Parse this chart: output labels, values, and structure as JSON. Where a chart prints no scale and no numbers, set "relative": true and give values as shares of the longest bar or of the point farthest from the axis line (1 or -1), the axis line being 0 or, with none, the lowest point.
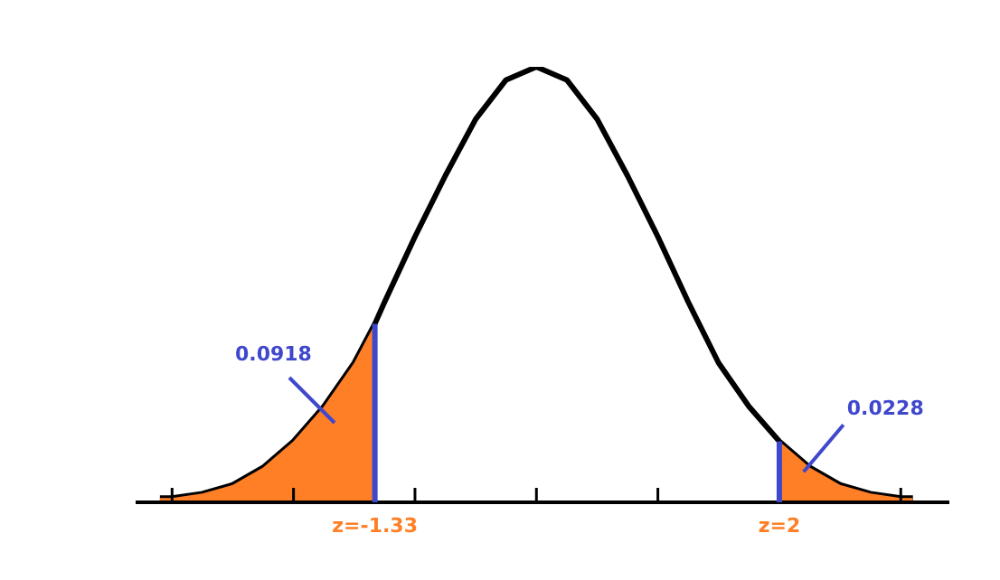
{
  "chart_data": {
    "type": "line",
    "relative": true,
    "legend": false,
    "tick_labels": "x",
    "marker": "none",
    "line_style": "solid",
    "xlim": [
      -3.3,
      3.4
    ],
    "xticks": [
      {
        "value": -3,
        "label": null
      },
      {
        "value": -2,
        "label": null
      },
      {
        "value": -1.33,
        "label": "z=-1.33"
      },
      {
        "value": -1,
        "label": null
      },
      {
        "value": 0,
        "label": null
      },
      {
        "value": 1,
        "label": null
      },
      {
        "value": 2,
        "label": "z=2"
      },
      {
        "value": 3,
        "label": null
      }
    ],
    "series": [
      {
        "type": "area",
        "color": "#ff7f27",
        "x": [
          -3.1,
          -3,
          -2.75,
          -2.5,
          -2.25,
          -2,
          -1.75,
          -1.5,
          -1.33
        ],
        "values": [
          0.01,
          0.01,
          0.02,
          0.04,
          0.08,
          0.14,
          0.22,
          0.32,
          0.41
        ]
      },
      {
        "type": "area",
        "color": "#ff7f27",
        "x": [
          2,
          2.25,
          2.5,
          2.75,
          3,
          3.1
        ],
        "values": [
          0.14,
          0.08,
          0.04,
          0.02,
          0.01,
          0.01
        ]
      },
      {
        "color": "#000000",
        "x": [
          -3.1,
          -3,
          -2.75,
          -2.5,
          -2.25,
          -2,
          -1.75,
          -1.5,
          -1.33,
          -1.25,
          -1,
          -0.75,
          -0.5,
          -0.25,
          0,
          0.25,
          0.5,
          0.75,
          1,
          1.25,
          1.5,
          1.75,
          2,
          2.25,
          2.5,
          2.75,
          3,
          3.1
        ],
        "values": [
          0.01,
          0.01,
          0.02,
          0.04,
          0.08,
          0.14,
          0.22,
          0.32,
          0.41,
          0.46,
          0.61,
          0.75,
          0.88,
          0.97,
          1,
          0.97,
          0.88,
          0.75,
          0.61,
          0.46,
          0.32,
          0.22,
          0.14,
          0.08,
          0.04,
          0.02,
          0.01,
          0.01
        ]
      }
    ],
    "ref_lines": [
      {
        "axis": "x",
        "value": -1.33,
        "color": "#3f48cc"
      },
      {
        "axis": "x",
        "value": 2,
        "color": "#3f48cc"
      }
    ],
    "annotations": [
      "0.0918",
      {
        "text": "0.0228",
        "x": 2.2,
        "y": 0.07
      }
    ]
  }
}
